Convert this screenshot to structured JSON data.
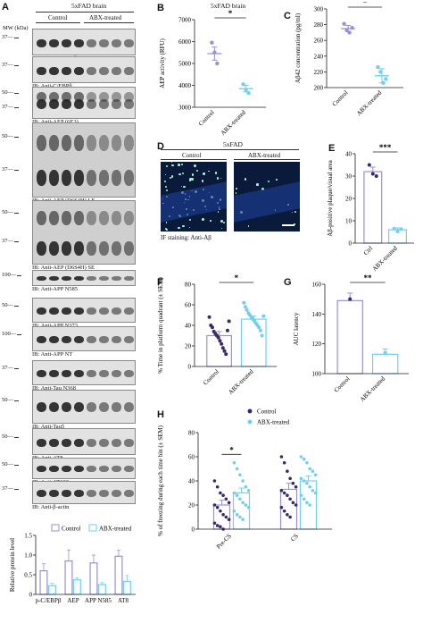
{
  "panel_a": {
    "letter": "A",
    "title": "5xFAD brain",
    "mw_label": "MW (kDa)",
    "groups": [
      "Control",
      "ABX-treated"
    ],
    "blots": [
      {
        "ib": "IB: Anti-p-C/EBPβ",
        "markers": [
          "37"
        ]
      },
      {
        "ib": "IB: Anti-C/EBPβ",
        "markers": [
          "37"
        ]
      },
      {
        "ib": "IB: Anti-AEP (6E3)",
        "markers": [
          "50",
          "37"
        ]
      },
      {
        "ib": "IB: Anti-AEP (D6S4H) LE",
        "markers": [
          "50",
          "37"
        ]
      },
      {
        "ib": "IB: Anti-AEP (D6S4H) SE",
        "markers": [
          "50",
          "37"
        ]
      },
      {
        "ib": "IB: Anti-APP N585",
        "markers": [
          "100"
        ]
      },
      {
        "ib": "IB: Anti-APP N373",
        "markers": [
          "50"
        ]
      },
      {
        "ib": "IB: Anti-APP NT",
        "markers": [
          "100"
        ]
      },
      {
        "ib": "IB: Anti-Tau N368",
        "markers": [
          "37"
        ]
      },
      {
        "ib": "IB: Anti-Tau5",
        "markers": [
          "50"
        ]
      },
      {
        "ib": "IB: Anti-AT8",
        "markers": [
          "50"
        ]
      },
      {
        "ib": "IB: Anti-AT100",
        "markers": [
          "50"
        ]
      },
      {
        "ib": "IB: Anti-β-actin",
        "markers": [
          "37"
        ]
      }
    ]
  },
  "panel_b": {
    "letter": "B",
    "title": "5xFAD brain"
  },
  "panel_c": {
    "letter": "C"
  },
  "panel_d": {
    "letter": "D",
    "title": "5xFAD",
    "groups": [
      "Control",
      "ABX-treated"
    ],
    "caption": "IF staining: Anti-Aβ"
  },
  "panel_e": {
    "letter": "E"
  },
  "panel_f": {
    "letter": "F"
  },
  "panel_g": {
    "letter": "G"
  },
  "panel_h": {
    "letter": "H"
  },
  "chart_data": [
    {
      "id": "A-quant",
      "type": "bar",
      "categories": [
        "p-C/EBPβ",
        "AEP",
        "APP N585",
        "AT8"
      ],
      "series": [
        {
          "name": "Control",
          "values": [
            0.6,
            0.85,
            0.8,
            0.97
          ],
          "err": [
            0.18,
            0.28,
            0.2,
            0.15
          ]
        },
        {
          "name": "ABX-treated",
          "values": [
            0.22,
            0.37,
            0.25,
            0.33
          ],
          "err": [
            0.06,
            0.05,
            0.05,
            0.15
          ]
        }
      ],
      "ylabel": "Relative protein level",
      "ylim": [
        0,
        1.5
      ],
      "yticks": [
        0,
        0.5,
        1,
        1.5
      ],
      "ytick_labels": [
        "0",
        "0.5",
        "1.0",
        "1.5"
      ],
      "legend": "top",
      "colors": [
        "#9b8fd6",
        "#6fd0f0"
      ]
    },
    {
      "id": "B",
      "type": "scatter",
      "categories": [
        "Control",
        "ABX-treated"
      ],
      "means": [
        5450,
        3850
      ],
      "sem": [
        300,
        150
      ],
      "points": [
        [
          5950,
          5500,
          5000
        ],
        [
          4050,
          3800,
          3650
        ]
      ],
      "ylabel": "AEP activity (RFU)",
      "ylim": [
        3000,
        7000
      ],
      "yticks": [
        3000,
        4000,
        5000,
        6000,
        7000
      ],
      "significance": "*",
      "colors": [
        "#9b8fd6",
        "#6fd0f0"
      ]
    },
    {
      "id": "C",
      "type": "scatter",
      "categories": [
        "Control",
        "ABX-treated"
      ],
      "means": [
        275,
        215
      ],
      "sem": [
        4,
        9
      ],
      "points": [
        [
          281,
          273,
          270,
          276
        ],
        [
          226,
          220,
          206,
          211
        ]
      ],
      "ylabel": "Aβ42 concentration (pg/ml)",
      "ylim": [
        200,
        300
      ],
      "yticks": [
        200,
        220,
        240,
        260,
        280,
        300
      ],
      "significance": "*",
      "colors": [
        "#9b8fd6",
        "#6fd0f0"
      ]
    },
    {
      "id": "E",
      "type": "bar",
      "categories": [
        "Ctrl",
        "ABX-treated"
      ],
      "values": [
        32,
        6
      ],
      "err": [
        2,
        0.8
      ],
      "points": [
        [
          35,
          31,
          30
        ],
        [
          6.5,
          5.2,
          6.3
        ]
      ],
      "ylabel": "Aβ-positive plaque/visual area",
      "ylim": [
        0,
        40
      ],
      "yticks": [
        0,
        10,
        20,
        30,
        40
      ],
      "significance": "***",
      "colors": [
        "#9b8fd6",
        "#6fd0f0"
      ]
    },
    {
      "id": "F",
      "type": "bar",
      "categories": [
        "Control",
        "ABX-treated"
      ],
      "values": [
        30,
        46
      ],
      "err": [
        4,
        3
      ],
      "points": [
        [
          48,
          40,
          38,
          34,
          32,
          30,
          28,
          25,
          22,
          18,
          15,
          12,
          35,
          44
        ],
        [
          62,
          58,
          55,
          52,
          50,
          48,
          46,
          44,
          42,
          40,
          38,
          35,
          30,
          49
        ]
      ],
      "ylabel": "% Time in platform quadrant (± SEM)",
      "ylim": [
        0,
        80
      ],
      "yticks": [
        0,
        20,
        40,
        60,
        80
      ],
      "significance": "*",
      "colors": [
        "#9b8fd6",
        "#6fd0f0"
      ]
    },
    {
      "id": "G",
      "type": "bar",
      "categories": [
        "Control",
        "ABX-treated"
      ],
      "values": [
        149,
        113
      ],
      "err": [
        5,
        3.5
      ],
      "points": [
        [
          150
        ],
        [
          114
        ]
      ],
      "ylabel": "AUC latency",
      "ylim": [
        100,
        160
      ],
      "yticks": [
        100,
        120,
        140,
        160
      ],
      "significance": "**",
      "colors": [
        "#9b8fd6",
        "#6fd0f0"
      ]
    },
    {
      "id": "H",
      "type": "bar",
      "categories": [
        "Pre-CS",
        "CS"
      ],
      "series": [
        {
          "name": "Control",
          "values": [
            20,
            33
          ],
          "err": [
            4,
            5
          ],
          "points": [
            [
              40,
              35,
              30,
              28,
              25,
              22,
              20,
              18,
              15,
              12,
              10,
              8,
              5,
              3,
              2,
              0
            ],
            [
              60,
              55,
              48,
              42,
              38,
              35,
              32,
              30,
              28,
              25,
              22,
              20,
              18,
              15,
              12,
              10
            ]
          ]
        },
        {
          "name": "ABX-treated",
          "values": [
            30,
            40
          ],
          "err": [
            4,
            4
          ],
          "points": [
            [
              55,
              50,
              45,
              40,
              35,
              32,
              30,
              28,
              25,
              22,
              20,
              18,
              15,
              12,
              10,
              8
            ],
            [
              60,
              58,
              55,
              50,
              48,
              45,
              42,
              40,
              38,
              35,
              32,
              30,
              28,
              25,
              22,
              20
            ]
          ]
        }
      ],
      "ylabel": "% of freezing during each time bin (± SEM)",
      "ylim": [
        0,
        80
      ],
      "yticks": [
        0,
        20,
        40,
        60,
        80
      ],
      "significance": "*",
      "legend": "top-right",
      "colors": [
        "#9b8fd6",
        "#6fd0f0"
      ]
    }
  ]
}
